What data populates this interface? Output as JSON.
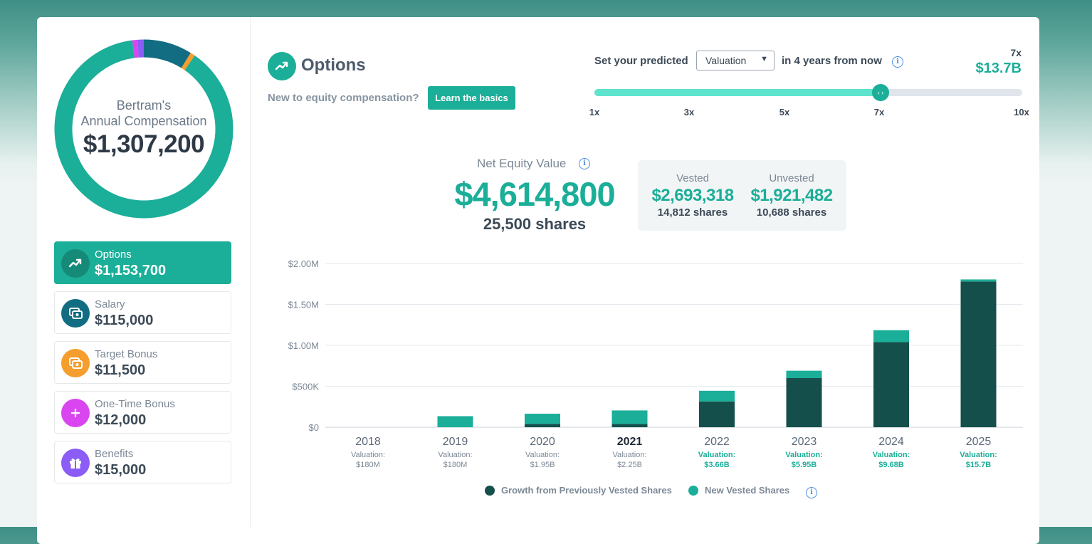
{
  "colors": {
    "accent": "#1bae98",
    "dark_series": "#144f4c",
    "salary": "#126d82",
    "bonus": "#f59d2d",
    "one_time": "#d946ef",
    "benefits": "#8b5cf6"
  },
  "summary": {
    "name": "Bertram's",
    "subtitle": "Annual Compensation",
    "total": "$1,307,200",
    "donut": [
      {
        "name": "Options",
        "value": 1153700,
        "color": "#1bae98"
      },
      {
        "name": "Salary",
        "value": 115000,
        "color": "#126d82"
      },
      {
        "name": "Target Bonus",
        "value": 11500,
        "color": "#f59d2d"
      },
      {
        "name": "One-Time Bonus",
        "value": 12000,
        "color": "#d946ef"
      },
      {
        "name": "Benefits",
        "value": 15000,
        "color": "#8b5cf6"
      }
    ]
  },
  "sidebar": {
    "items": [
      {
        "label": "Options",
        "value": "$1,153,700",
        "icon": "trending-up-icon"
      },
      {
        "label": "Salary",
        "value": "$115,000",
        "icon": "cash-icon"
      },
      {
        "label": "Target Bonus",
        "value": "$11,500",
        "icon": "cash-icon"
      },
      {
        "label": "One-Time Bonus",
        "value": "$12,000",
        "icon": "plus-icon"
      },
      {
        "label": "Benefits",
        "value": "$15,000",
        "icon": "gift-icon"
      }
    ]
  },
  "header": {
    "title": "Options",
    "new_to": "New to equity compensation?",
    "learn_button": "Learn the basics"
  },
  "predictor": {
    "prefix": "Set your predicted",
    "select_value": "Valuation",
    "suffix": "in 4 years from now",
    "multiplier": "7x",
    "projected_valuation": "$13.7B",
    "slider_value": 7,
    "slider_min": 1,
    "slider_max": 10,
    "ticks": [
      "1x",
      "3x",
      "5x",
      "7x",
      "10x"
    ]
  },
  "equity": {
    "label": "Net Equity Value",
    "value": "$4,614,800",
    "shares": "25,500 shares",
    "vested_label": "Vested",
    "vested_value": "$2,693,318",
    "vested_shares": "14,812 shares",
    "unvested_label": "Unvested",
    "unvested_value": "$1,921,482",
    "unvested_shares": "10,688 shares"
  },
  "chart_data": {
    "type": "bar",
    "stacked": true,
    "categories": [
      "2018",
      "2019",
      "2020",
      "2021",
      "2022",
      "2023",
      "2024",
      "2025"
    ],
    "highlight_category": "2021",
    "valuation_prefix": "Valuation:",
    "valuations": [
      "$180M",
      "$180M",
      "$1.95B",
      "$2.25B",
      "$3.66B",
      "$5.95B",
      "$9.68B",
      "$15.7B"
    ],
    "projected_from_index": 4,
    "series": [
      {
        "name": "Growth from Previously Vested Shares",
        "color": "#144f4c",
        "values": [
          0,
          0,
          40000,
          40000,
          315000,
          600000,
          1040000,
          1780000
        ]
      },
      {
        "name": "New Vested Shares",
        "color": "#1bae98",
        "values": [
          0,
          135000,
          125000,
          165000,
          130000,
          90000,
          145000,
          25000
        ]
      }
    ],
    "yticks": [
      "$0",
      "$500K",
      "$1.00M",
      "$1.50M",
      "$2.00M"
    ],
    "ylim": [
      0,
      2000000
    ],
    "grid": true,
    "legend": "bottom"
  }
}
